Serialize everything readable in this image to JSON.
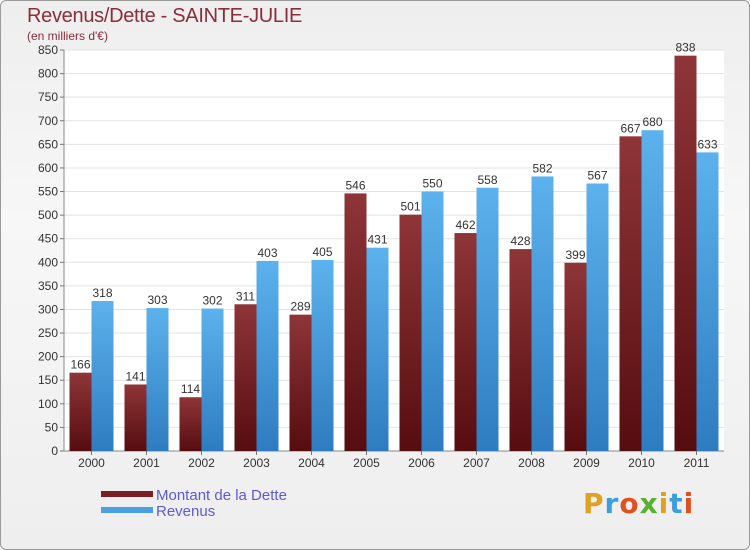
{
  "title": "Revenus/Dette - SAINTE-JULIE",
  "subtitle": "(en milliers d'€)",
  "legend": {
    "dette_label": "Montant de la Dette",
    "revenus_label": "Revenus"
  },
  "logo": {
    "text": "Proxiti",
    "letters": [
      "P",
      "r",
      "o",
      "x",
      "i",
      "t",
      "i"
    ],
    "colors": [
      "#e0a020",
      "#3a9ee0",
      "#e05020",
      "#5ab030",
      "#e0a020",
      "#3a9ee0",
      "#e05020"
    ]
  },
  "colors": {
    "dette": "#7a1f24",
    "revenus": "#4aa0e0",
    "title": "#8b2d3a",
    "legend_text": "#5b5bd8"
  },
  "chart_data": {
    "type": "bar",
    "title": "Revenus/Dette - SAINTE-JULIE",
    "ylabel": "(en milliers d'€)",
    "xlabel": "",
    "categories": [
      "2000",
      "2001",
      "2002",
      "2003",
      "2004",
      "2005",
      "2006",
      "2007",
      "2008",
      "2009",
      "2010",
      "2011"
    ],
    "series": [
      {
        "name": "Montant de la Dette",
        "values": [
          166,
          141,
          114,
          311,
          289,
          546,
          501,
          462,
          428,
          399,
          667,
          838
        ]
      },
      {
        "name": "Revenus",
        "values": [
          318,
          303,
          302,
          403,
          405,
          431,
          550,
          558,
          582,
          567,
          680,
          633
        ]
      }
    ],
    "ylim": [
      0,
      850
    ],
    "ytick_step": 50,
    "grid": true,
    "legend_position": "bottom-left"
  }
}
